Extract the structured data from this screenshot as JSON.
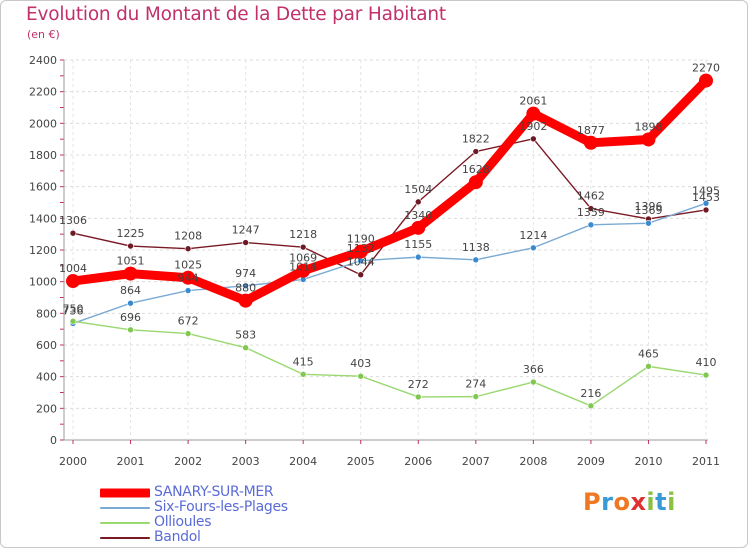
{
  "title": "Evolution du Montant de la Dette par Habitant",
  "subtitle": "(en €)",
  "logo": {
    "text": "Proxiti",
    "colors": [
      "#f07820",
      "#3a9ad8",
      "#f07820",
      "#e03030",
      "#8cc040",
      "#3a9ad8",
      "#8cc040"
    ]
  },
  "chart_data": {
    "type": "line",
    "title": "Evolution du Montant de la Dette par Habitant",
    "subtitle": "(en €)",
    "xlabel": "",
    "ylabel": "",
    "x": [
      "2000",
      "2001",
      "2002",
      "2003",
      "2004",
      "2005",
      "2006",
      "2007",
      "2008",
      "2009",
      "2010",
      "2011"
    ],
    "ylim": [
      0,
      2400
    ],
    "yticks": [
      0,
      200,
      400,
      600,
      800,
      1000,
      1200,
      1400,
      1600,
      1800,
      2000,
      2200,
      2400
    ],
    "grid": true,
    "legend_position": "bottom-left",
    "series": [
      {
        "name": "Bandol",
        "color": "#7a1a24",
        "marker": "#6e1a24",
        "values": [
          1306,
          1225,
          1208,
          1247,
          1218,
          1044,
          1504,
          1822,
          1902,
          1462,
          1396,
          1453
        ]
      },
      {
        "name": "Six-Fours-les-Plages",
        "color": "#7aaad4",
        "marker": "#3a8ad0",
        "values": [
          736,
          864,
          944,
          974,
          1014,
          1132,
          1155,
          1138,
          1214,
          1359,
          1369,
          1495
        ]
      },
      {
        "name": "Ollioules",
        "color": "#9ad870",
        "marker": "#80c850",
        "values": [
          750,
          696,
          672,
          583,
          415,
          403,
          272,
          274,
          366,
          216,
          465,
          410
        ]
      },
      {
        "name": "SANARY-SUR-MER",
        "color": "#ff0000",
        "marker": "#ff0000",
        "values": [
          1004,
          1051,
          1025,
          880,
          1069,
          1190,
          1340,
          1628,
          2061,
          1877,
          1898,
          2270
        ]
      }
    ],
    "legend": [
      {
        "name": "SANARY-SUR-MER",
        "color": "#ff0000"
      },
      {
        "name": "Six-Fours-les-Plages",
        "color": "#7aaad4"
      },
      {
        "name": "Ollioules",
        "color": "#9ad870"
      },
      {
        "name": "Bandol",
        "color": "#7a1a24"
      }
    ]
  }
}
